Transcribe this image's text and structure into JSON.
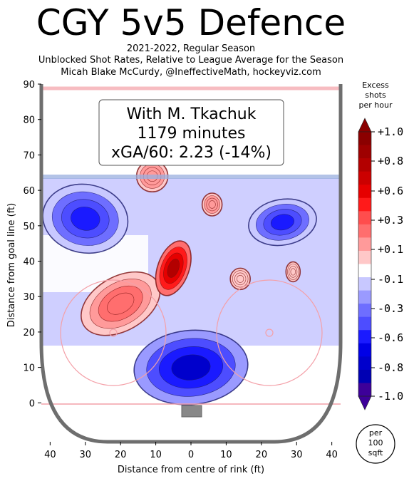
{
  "header": {
    "title": "CGY 5v5 Defence",
    "subtitle_lines": [
      "2021-2022, Regular Season",
      "Unblocked Shot Rates, Relative to League Average for the Season",
      "Micah Blake McCurdy, @IneffectiveMath, hockeyviz.com"
    ]
  },
  "info_box": {
    "line1": "With M. Tkachuk",
    "line2": "1179 minutes",
    "line3": "xGA/60: 2.23 (-14%)"
  },
  "colorbar": {
    "title_lines": [
      "Excess",
      "shots",
      "per hour"
    ],
    "tick_labels": [
      "+1.0",
      "+0.8",
      "+0.6",
      "+0.3",
      "+0.1",
      "-0.1",
      "-0.3",
      "-0.6",
      "-0.8",
      "-1.0"
    ],
    "colors_top_to_bottom": [
      "#8b0000",
      "#9e0000",
      "#b30000",
      "#cc0000",
      "#e60000",
      "#ff1a1a",
      "#ff4d4d",
      "#ff6e6e",
      "#ff9a9a",
      "#ffc8c8",
      "#ffffff",
      "#c8c8ff",
      "#9a9aff",
      "#6e6eff",
      "#4d4dff",
      "#1a1aff",
      "#0000e6",
      "#0000cc",
      "#0000b3",
      "#3d0099"
    ],
    "unit_lines": [
      "per",
      "100",
      "sqft"
    ]
  },
  "chart_data": {
    "type": "heatmap",
    "title": "CGY 5v5 Defence",
    "xlabel": "Distance from centre of rink (ft)",
    "ylabel": "Distance from goal line (ft)",
    "xlim": [
      -42.5,
      42.5
    ],
    "ylim": [
      -11,
      90
    ],
    "x_tick_labels": [
      "40",
      "30",
      "20",
      "10",
      "0",
      "10",
      "20",
      "30",
      "40"
    ],
    "x_ticks": [
      -40,
      -30,
      -20,
      -10,
      0,
      10,
      20,
      30,
      40
    ],
    "y_ticks": [
      0,
      10,
      20,
      30,
      40,
      50,
      60,
      70,
      80,
      90
    ],
    "value_range": [
      -1.0,
      1.0
    ],
    "regions": [
      {
        "x": 0,
        "y": 10,
        "value": -0.8
      },
      {
        "x": -30,
        "y": 52,
        "value": -0.6
      },
      {
        "x": 26,
        "y": 51,
        "value": -0.6
      },
      {
        "x": -20,
        "y": 28,
        "value": 0.3
      },
      {
        "x": -5,
        "y": 38,
        "value": 0.8
      },
      {
        "x": -11,
        "y": 64,
        "value": 0.2
      },
      {
        "x": 6,
        "y": 56,
        "value": 0.2
      },
      {
        "x": 14,
        "y": 35,
        "value": 0.1
      },
      {
        "x": 29,
        "y": 37,
        "value": 0.1
      }
    ]
  }
}
